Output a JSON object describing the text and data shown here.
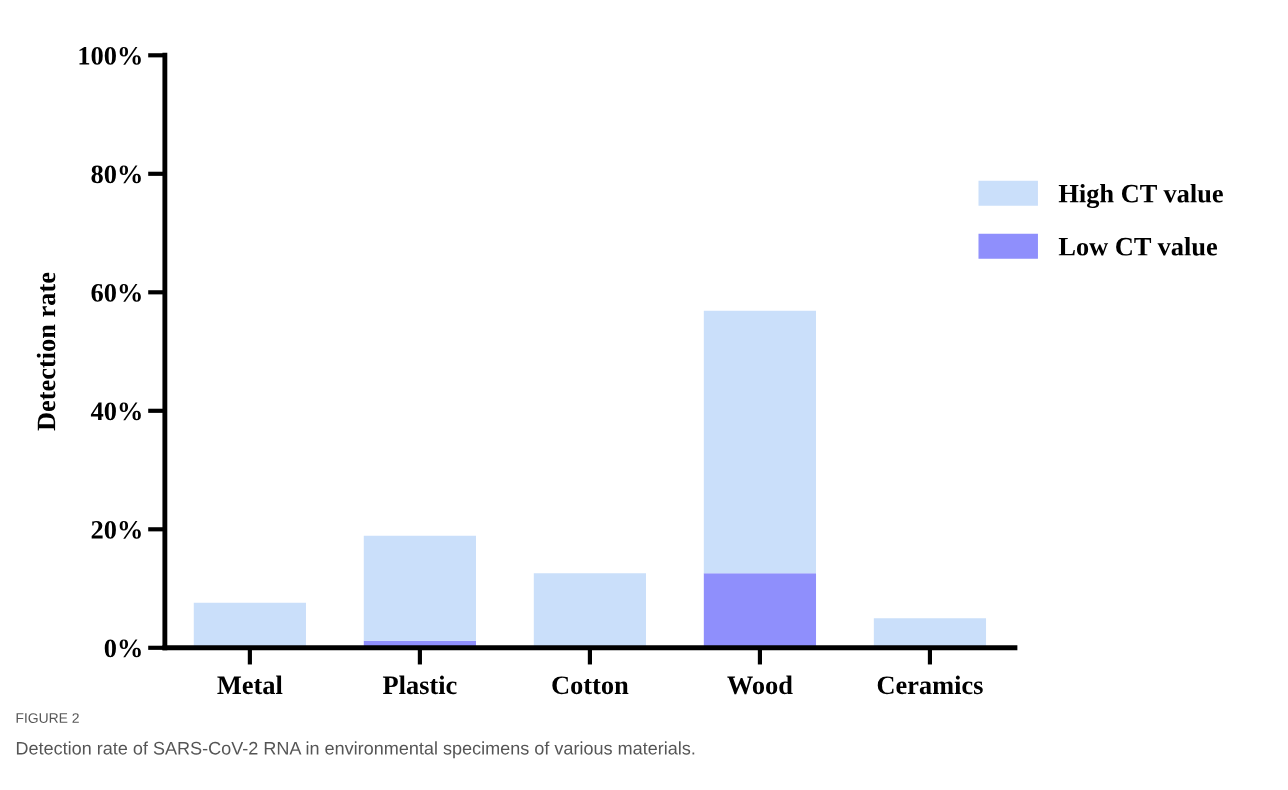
{
  "chart_data": {
    "type": "bar",
    "ylabel": "Detection rate",
    "stacked": true,
    "categories": [
      "Metal",
      "Plastic",
      "Cotton",
      "Wood",
      "Ceramics"
    ],
    "series": [
      {
        "name": "Low CT value",
        "color": "#8f8ffc",
        "values": [
          0,
          1.2,
          0,
          12.6,
          0
        ]
      },
      {
        "name": "High CT value",
        "color": "#cadffa",
        "values": [
          7.6,
          17.7,
          12.6,
          44.3,
          5.0
        ]
      }
    ],
    "ylim": [
      0,
      100
    ],
    "yticks": [
      {
        "value": 0,
        "label": "0%"
      },
      {
        "value": 20,
        "label": "20%"
      },
      {
        "value": 40,
        "label": "40%"
      },
      {
        "value": 60,
        "label": "60%"
      },
      {
        "value": 80,
        "label": "80%"
      },
      {
        "value": 100,
        "label": "100%"
      }
    ],
    "grid": false,
    "legend": "right",
    "annotations": [
      "FIGURE 2",
      "Detection rate of SARS-CoV-2 RNA in environmental specimens of various materials."
    ]
  }
}
